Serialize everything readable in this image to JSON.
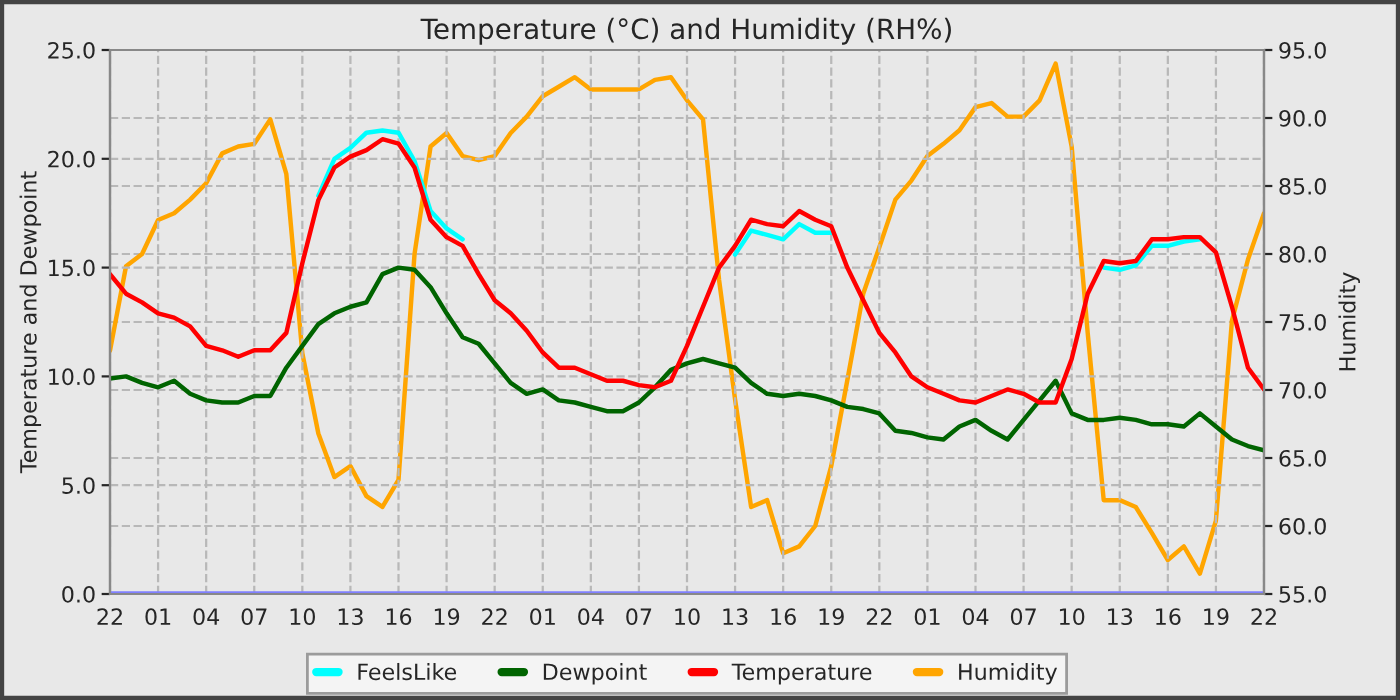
{
  "chart_data": {
    "type": "line",
    "title": "Temperature (°C) and Humidity (RH%)",
    "ylabel": "Temperature and Dewpoint",
    "y2label": "Humidity",
    "categories": [
      "22",
      null,
      null,
      "01",
      null,
      null,
      "04",
      null,
      null,
      "07",
      null,
      null,
      "10",
      null,
      null,
      "13",
      null,
      null,
      "16",
      null,
      null,
      "19",
      null,
      null,
      "22",
      null,
      null,
      "01",
      null,
      null,
      "04",
      null,
      null,
      "07",
      null,
      null,
      "10",
      null,
      null,
      "13",
      null,
      null,
      "16",
      null,
      null,
      "19",
      null,
      null,
      "22",
      null,
      null,
      "01",
      null,
      null,
      "04",
      null,
      null,
      "07",
      null,
      null,
      "10",
      null,
      null,
      "13",
      null,
      null,
      "16",
      null,
      null,
      "19",
      null,
      null,
      "22"
    ],
    "series": [
      {
        "name": "FeelsLike",
        "color": "#00ffff",
        "values": [
          null,
          null,
          null,
          null,
          null,
          null,
          null,
          null,
          null,
          null,
          null,
          null,
          null,
          18.3,
          20.0,
          20.5,
          21.2,
          21.3,
          21.2,
          19.9,
          17.6,
          16.8,
          16.3,
          null,
          null,
          null,
          null,
          null,
          null,
          null,
          null,
          null,
          null,
          null,
          null,
          null,
          null,
          null,
          null,
          15.6,
          16.7,
          16.5,
          16.3,
          17.0,
          16.6,
          16.6,
          null,
          null,
          null,
          null,
          null,
          null,
          null,
          null,
          null,
          null,
          null,
          null,
          null,
          null,
          null,
          null,
          15.0,
          14.9,
          15.1,
          16.0,
          16.0,
          16.2,
          16.3,
          null,
          null,
          null,
          null
        ]
      },
      {
        "name": "Dewpoint",
        "color": "#006400",
        "values": [
          9.9,
          10.0,
          9.7,
          9.5,
          9.8,
          9.2,
          8.9,
          8.8,
          8.8,
          9.1,
          9.1,
          10.4,
          11.4,
          12.4,
          12.9,
          13.2,
          13.4,
          14.7,
          15.0,
          14.9,
          14.1,
          12.9,
          11.8,
          11.5,
          10.6,
          9.7,
          9.2,
          9.4,
          8.9,
          8.8,
          8.6,
          8.4,
          8.4,
          8.8,
          9.5,
          10.3,
          10.6,
          10.8,
          10.6,
          10.4,
          9.7,
          9.2,
          9.1,
          9.2,
          9.1,
          8.9,
          8.6,
          8.5,
          8.3,
          7.5,
          7.4,
          7.2,
          7.1,
          7.7,
          8.0,
          7.5,
          7.1,
          8.0,
          8.9,
          9.8,
          8.3,
          8.0,
          8.0,
          8.1,
          8.0,
          7.8,
          7.8,
          7.7,
          8.3,
          7.7,
          7.1,
          6.8,
          6.6
        ]
      },
      {
        "name": "Temperature",
        "color": "#ff0000",
        "values": [
          14.7,
          13.8,
          13.4,
          12.9,
          12.7,
          12.3,
          11.4,
          11.2,
          10.9,
          11.2,
          11.2,
          12.0,
          15.2,
          18.1,
          19.6,
          20.1,
          20.4,
          20.9,
          20.7,
          19.6,
          17.2,
          16.4,
          16.0,
          14.7,
          13.5,
          12.9,
          12.1,
          11.1,
          10.4,
          10.4,
          10.1,
          9.8,
          9.8,
          9.6,
          9.5,
          9.8,
          11.4,
          13.2,
          15.0,
          16.0,
          17.2,
          17.0,
          16.9,
          17.6,
          17.2,
          16.9,
          15.0,
          13.5,
          12.0,
          11.1,
          10.0,
          9.5,
          9.2,
          8.9,
          8.8,
          9.1,
          9.4,
          9.2,
          8.8,
          8.8,
          10.8,
          13.8,
          15.3,
          15.2,
          15.3,
          16.3,
          16.3,
          16.4,
          16.4,
          15.7,
          13.2,
          10.4,
          9.4
        ]
      },
      {
        "name": "Humidity",
        "color": "#ffa500",
        "axis": "y2",
        "values": [
          72.9,
          79.1,
          80.0,
          82.5,
          83.0,
          84.0,
          85.2,
          87.4,
          87.9,
          88.1,
          89.9,
          85.9,
          72.7,
          66.8,
          63.6,
          64.4,
          62.2,
          61.4,
          63.4,
          80.0,
          87.9,
          88.9,
          87.2,
          86.9,
          87.2,
          88.9,
          90.1,
          91.6,
          92.3,
          93.0,
          92.1,
          92.1,
          92.1,
          92.1,
          92.8,
          93.0,
          91.3,
          89.9,
          78.1,
          69.3,
          61.4,
          61.9,
          58.0,
          58.5,
          60.0,
          64.4,
          70.7,
          77.1,
          80.5,
          84.0,
          85.4,
          87.2,
          88.1,
          89.1,
          90.8,
          91.1,
          90.1,
          90.1,
          91.3,
          94.0,
          87.9,
          74.2,
          61.9,
          61.9,
          61.4,
          59.5,
          57.5,
          58.5,
          56.5,
          60.4,
          75.1,
          79.6,
          83.0
        ]
      }
    ],
    "ylim": [
      0,
      25
    ],
    "yticks": [
      {
        "value": 0,
        "label": "0.0"
      },
      {
        "value": 5,
        "label": "5.0"
      },
      {
        "value": 10,
        "label": "10.0"
      },
      {
        "value": 15,
        "label": "15.0"
      },
      {
        "value": 20,
        "label": "20.0"
      },
      {
        "value": 25,
        "label": "25.0"
      }
    ],
    "y2lim": [
      55,
      95
    ],
    "y2ticks": [
      {
        "value": 55,
        "label": "55.0"
      },
      {
        "value": 60,
        "label": "60.0"
      },
      {
        "value": 65,
        "label": "65.0"
      },
      {
        "value": 70,
        "label": "70.0"
      },
      {
        "value": 75,
        "label": "75.0"
      },
      {
        "value": 80,
        "label": "80.0"
      },
      {
        "value": 85,
        "label": "85.0"
      },
      {
        "value": 90,
        "label": "90.0"
      },
      {
        "value": 95,
        "label": "95.0"
      }
    ],
    "ref_lines": [
      {
        "axis": "y",
        "value": 0,
        "color": "#8080ff"
      }
    ],
    "grid": true,
    "legend": "bottom",
    "line_style": "solid",
    "marker": "none"
  }
}
